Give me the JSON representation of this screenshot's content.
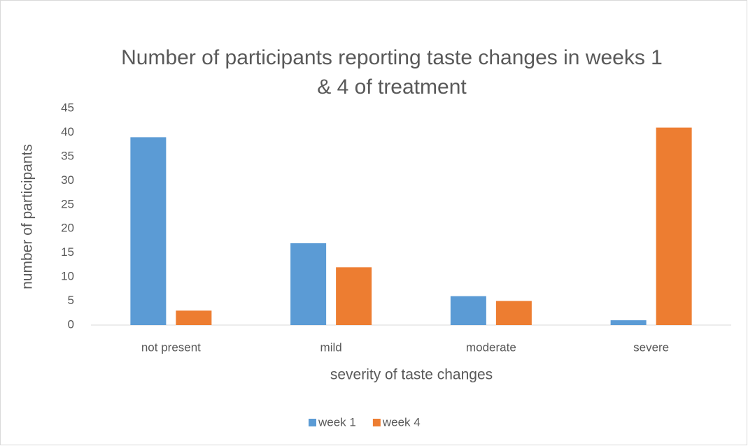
{
  "chart_data": {
    "type": "bar",
    "title": "Number of participants reporting taste changes in weeks 1 & 4 of treatment",
    "x_label": "severity of taste changes",
    "y_label": "number of participants",
    "categories": [
      "not present",
      "mild",
      "moderate",
      "severe"
    ],
    "series": [
      {
        "name": "week 1",
        "color": "#5b9bd5",
        "values": [
          39,
          17,
          6,
          1
        ]
      },
      {
        "name": "week 4",
        "color": "#ed7d31",
        "values": [
          3,
          12,
          5,
          41
        ]
      }
    ],
    "ylim": [
      0,
      45
    ],
    "yticks": [
      0,
      5,
      10,
      15,
      20,
      25,
      30,
      35,
      40,
      45
    ],
    "grid": false,
    "legend": "bottom"
  }
}
